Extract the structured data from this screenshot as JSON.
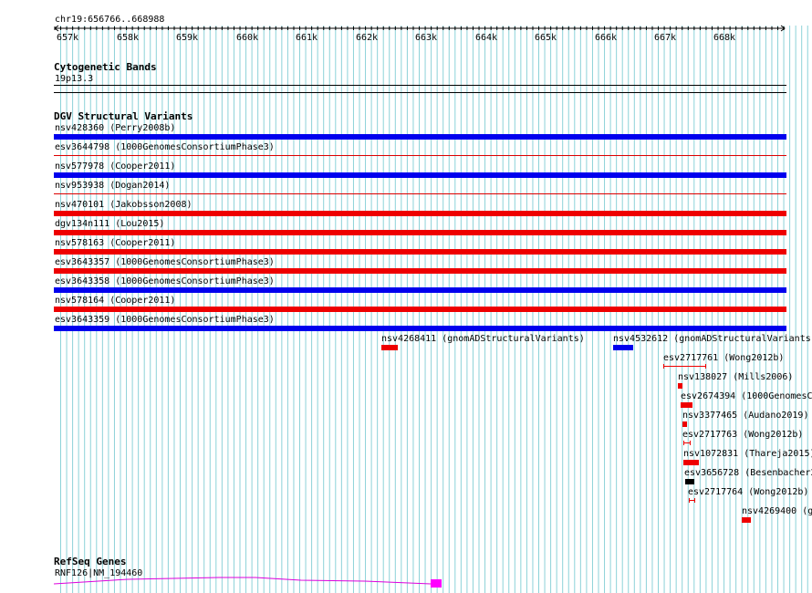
{
  "ruler": {
    "region": "chr19:656766..668988",
    "ticks": [
      "657k",
      "658k",
      "659k",
      "660k",
      "661k",
      "662k",
      "663k",
      "664k",
      "665k",
      "666k",
      "667k",
      "668k"
    ]
  },
  "cytoband": {
    "title": "Cytogenetic Bands",
    "band": "19p13.3"
  },
  "dgv": {
    "title": "DGV Structural Variants",
    "full_variants": [
      {
        "label": "nsv428360 (Perry2008b)",
        "color": "#0000ee",
        "style": "thick"
      },
      {
        "label": "esv3644798 (1000GenomesConsortiumPhase3)",
        "color": "#dd0000",
        "style": "thin"
      },
      {
        "label": "nsv577978 (Cooper2011)",
        "color": "#0000ee",
        "style": "thick"
      },
      {
        "label": "nsv953938 (Dogan2014)",
        "color": "#dd0000",
        "style": "thin"
      },
      {
        "label": "nsv470101 (Jakobsson2008)",
        "color": "#ee0000",
        "style": "thick"
      },
      {
        "label": "dgv134n111 (Lou2015)",
        "color": "#ee0000",
        "style": "thick"
      },
      {
        "label": "nsv578163 (Cooper2011)",
        "color": "#ee0000",
        "style": "thick"
      },
      {
        "label": "esv3643357 (1000GenomesConsortiumPhase3)",
        "color": "#ee0000",
        "style": "thick"
      },
      {
        "label": "esv3643358 (1000GenomesConsortiumPhase3)",
        "color": "#0000ee",
        "style": "thick"
      },
      {
        "label": "nsv578164 (Cooper2011)",
        "color": "#ee0000",
        "style": "thick"
      },
      {
        "label": "esv3643359 (1000GenomesConsortiumPhase3)",
        "color": "#0000ee",
        "style": "thick"
      }
    ],
    "small_variants": [
      {
        "label": "nsv4268411 (gnomADStructuralVariants)",
        "color": "#ee0000",
        "style": "bar"
      },
      {
        "label": "nsv4532612 (gnomADStructuralVariants)",
        "color": "#0000ee",
        "style": "bar"
      },
      {
        "label": "esv2717761 (Wong2012b)",
        "color": "#ee0000",
        "style": "interval"
      },
      {
        "label": "nsv138027 (Mills2006)",
        "color": "#ee0000",
        "style": "bar"
      },
      {
        "label": "esv2674394 (1000GenomesC",
        "color": "#ee0000",
        "style": "bar"
      },
      {
        "label": "nsv3377465 (Audano2019)",
        "color": "#ee0000",
        "style": "bar"
      },
      {
        "label": "esv2717763 (Wong2012b)",
        "color": "#ee0000",
        "style": "interval"
      },
      {
        "label": "nsv1072831 (Thareja2015)",
        "color": "#ee0000",
        "style": "bar"
      },
      {
        "label": "esv3656728 (Besenbacher2",
        "color": "#000000",
        "style": "bar"
      },
      {
        "label": "esv2717764 (Wong2012b)",
        "color": "#ee0000",
        "style": "interval"
      },
      {
        "label": "nsv4269400 (g",
        "color": "#ee0000",
        "style": "bar"
      }
    ]
  },
  "refseq": {
    "title": "RefSeq Genes",
    "gene_label": "RNF126|NM_194460",
    "color": "#dd00dd"
  },
  "colors": {
    "grid": "#8cd2d8",
    "track_line": "#000000"
  }
}
